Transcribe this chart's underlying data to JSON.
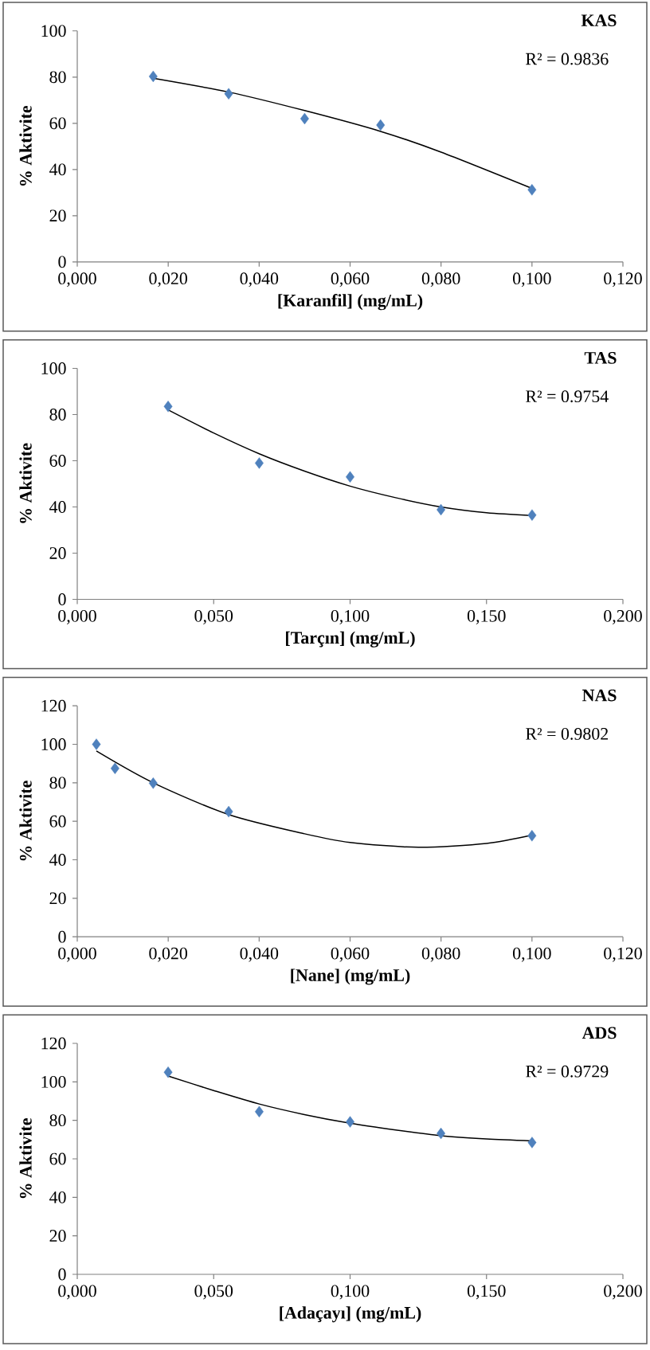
{
  "chart_data": [
    {
      "type": "scatter",
      "title": "KAS",
      "xlabel": "[Karanfil] (mg/mL)",
      "ylabel": "% Aktivite",
      "annotations": [
        "R² = 0.9836"
      ],
      "xlim": [
        0,
        0.12
      ],
      "xticks": [
        {
          "value": 0,
          "label": "0,000"
        },
        {
          "value": 0.02,
          "label": "0,020"
        },
        {
          "value": 0.04,
          "label": "0,040"
        },
        {
          "value": 0.06,
          "label": "0,060"
        },
        {
          "value": 0.08,
          "label": "0,080"
        },
        {
          "value": 0.1,
          "label": "0,100"
        },
        {
          "value": 0.12,
          "label": "0,120"
        }
      ],
      "ylim": [
        0,
        100
      ],
      "yticks": [
        0,
        20,
        40,
        60,
        80,
        100
      ],
      "series": [
        {
          "type": "scatter",
          "marker": "diamond",
          "color": "#4f81bd",
          "x": [
            0.0167,
            0.0333,
            0.05,
            0.0667,
            0.1
          ],
          "values": [
            80.3,
            72.8,
            62,
            59.2,
            31.2
          ]
        },
        {
          "type": "line",
          "marker": "none",
          "color": "#000000",
          "x": [
            0.0167,
            0.0333,
            0.05,
            0.0667,
            0.08,
            0.1
          ],
          "values": [
            79.5,
            73.5,
            65.5,
            56.5,
            47.5,
            31.8
          ]
        }
      ]
    },
    {
      "type": "scatter",
      "title": "TAS",
      "xlabel": "[Tarçın] (mg/mL)",
      "ylabel": "% Aktivite",
      "annotations": [
        "R² = 0.9754"
      ],
      "xlim": [
        0,
        0.2
      ],
      "xticks": [
        {
          "value": 0,
          "label": "0,000"
        },
        {
          "value": 0.05,
          "label": "0,050"
        },
        {
          "value": 0.1,
          "label": "0,100"
        },
        {
          "value": 0.15,
          "label": "0,150"
        },
        {
          "value": 0.2,
          "label": "0,200"
        }
      ],
      "ylim": [
        0,
        100
      ],
      "yticks": [
        0,
        20,
        40,
        60,
        80,
        100
      ],
      "series": [
        {
          "type": "scatter",
          "marker": "diamond",
          "color": "#4f81bd",
          "x": [
            0.0333,
            0.0667,
            0.1,
            0.1333,
            0.1667
          ],
          "values": [
            83.5,
            59,
            53,
            38.8,
            36.5
          ]
        },
        {
          "type": "line",
          "marker": "none",
          "color": "#000000",
          "x": [
            0.0333,
            0.05,
            0.0667,
            0.0833,
            0.1,
            0.1167,
            0.1333,
            0.15,
            0.1667
          ],
          "values": [
            82,
            72,
            63,
            55.5,
            49,
            44,
            40,
            37.5,
            36.3
          ]
        }
      ]
    },
    {
      "type": "scatter",
      "title": "NAS",
      "xlabel": "[Nane] (mg/mL)",
      "ylabel": "% Aktivite",
      "annotations": [
        "R² = 0.9802"
      ],
      "xlim": [
        0,
        0.12
      ],
      "xticks": [
        {
          "value": 0,
          "label": "0,000"
        },
        {
          "value": 0.02,
          "label": "0,020"
        },
        {
          "value": 0.04,
          "label": "0,040"
        },
        {
          "value": 0.06,
          "label": "0,060"
        },
        {
          "value": 0.08,
          "label": "0,080"
        },
        {
          "value": 0.1,
          "label": "0,100"
        },
        {
          "value": 0.12,
          "label": "0,120"
        }
      ],
      "ylim": [
        0,
        120
      ],
      "yticks": [
        0,
        20,
        40,
        60,
        80,
        100,
        120
      ],
      "series": [
        {
          "type": "scatter",
          "marker": "diamond",
          "color": "#4f81bd",
          "x": [
            0.0042,
            0.0083,
            0.0167,
            0.0333,
            0.1
          ],
          "values": [
            100,
            87.5,
            79.8,
            65,
            52.5
          ]
        },
        {
          "type": "line",
          "marker": "none",
          "color": "#000000",
          "x": [
            0.0042,
            0.0167,
            0.0333,
            0.05,
            0.06,
            0.075,
            0.09,
            0.1
          ],
          "values": [
            96.5,
            80,
            63.5,
            53.5,
            49,
            46.5,
            48.5,
            52.8
          ]
        }
      ]
    },
    {
      "type": "scatter",
      "title": "ADS",
      "xlabel": "[Adaçayı] (mg/mL)",
      "ylabel": "% Aktivite",
      "annotations": [
        "R² = 0.9729"
      ],
      "xlim": [
        0,
        0.2
      ],
      "xticks": [
        {
          "value": 0,
          "label": "0,000"
        },
        {
          "value": 0.05,
          "label": "0,050"
        },
        {
          "value": 0.1,
          "label": "0,100"
        },
        {
          "value": 0.15,
          "label": "0,150"
        },
        {
          "value": 0.2,
          "label": "0,200"
        }
      ],
      "ylim": [
        0,
        120
      ],
      "yticks": [
        0,
        20,
        40,
        60,
        80,
        100,
        120
      ],
      "series": [
        {
          "type": "scatter",
          "marker": "diamond",
          "color": "#4f81bd",
          "x": [
            0.0333,
            0.0667,
            0.1,
            0.1333,
            0.1667
          ],
          "values": [
            105,
            84.5,
            79.2,
            73.2,
            68.5
          ]
        },
        {
          "type": "line",
          "marker": "none",
          "color": "#000000",
          "x": [
            0.0333,
            0.05,
            0.0667,
            0.0833,
            0.1,
            0.1167,
            0.1333,
            0.15,
            0.1667
          ],
          "values": [
            103,
            95.5,
            88.5,
            83,
            78.5,
            75,
            72,
            70.3,
            69.3
          ]
        }
      ]
    }
  ]
}
